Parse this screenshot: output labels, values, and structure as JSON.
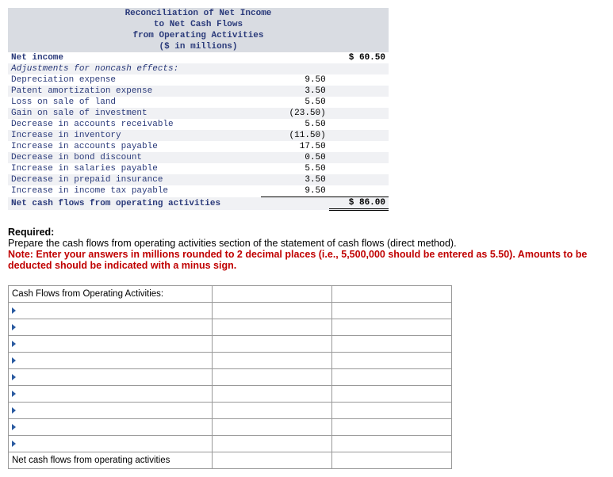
{
  "reconciliation": {
    "header_lines": [
      "Reconciliation of Net Income",
      "to Net Cash Flows",
      "from Operating Activities",
      "($ in millions)"
    ],
    "rows": [
      {
        "label": "Net income",
        "val": "",
        "total": "$ 60.50",
        "bold": true,
        "alt": false
      },
      {
        "label": "Adjustments for noncash effects:",
        "val": "",
        "total": "",
        "italic": true,
        "alt": true
      },
      {
        "label": "Depreciation expense",
        "val": "9.50",
        "total": "",
        "alt": false
      },
      {
        "label": "Patent amortization expense",
        "val": "3.50",
        "total": "",
        "alt": true
      },
      {
        "label": "Loss on sale of land",
        "val": "5.50",
        "total": "",
        "alt": false
      },
      {
        "label": "Gain on sale of investment",
        "val": "(23.50)",
        "total": "",
        "alt": true
      },
      {
        "label": "Decrease in accounts receivable",
        "val": "5.50",
        "total": "",
        "alt": false
      },
      {
        "label": "Increase in inventory",
        "val": "(11.50)",
        "total": "",
        "alt": true
      },
      {
        "label": "Increase in accounts payable",
        "val": "17.50",
        "total": "",
        "alt": false
      },
      {
        "label": "Decrease in bond discount",
        "val": "0.50",
        "total": "",
        "alt": true
      },
      {
        "label": "Increase in salaries payable",
        "val": "5.50",
        "total": "",
        "alt": false
      },
      {
        "label": "Decrease in prepaid insurance",
        "val": "3.50",
        "total": "",
        "alt": true
      },
      {
        "label": "Increase in income tax payable",
        "val": "9.50",
        "total": "",
        "alt": false,
        "underline_val": true
      }
    ],
    "footer": {
      "label": "Net cash flows from operating activities",
      "total": "$ 86.00"
    }
  },
  "required": {
    "heading": "Required:",
    "line1": "Prepare the cash flows from operating activities section of the statement of cash flows (direct method).",
    "note": "Note: Enter your answers in millions rounded to 2 decimal places (i.e., 5,500,000 should be entered as 5.50). Amounts to be deducted should be indicated with a minus sign."
  },
  "input_table": {
    "header": "Cash Flows from Operating Activities:",
    "blank_rows": 9,
    "footer": "Net cash flows from operating activities"
  }
}
